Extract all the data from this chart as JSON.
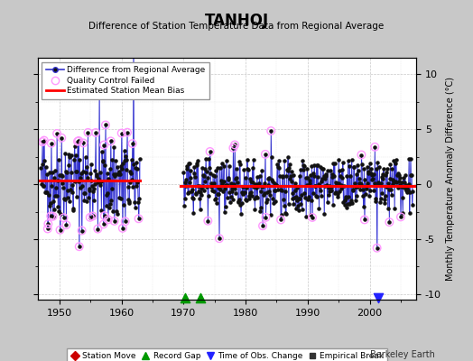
{
  "title": "TANHOJ",
  "subtitle": "Difference of Station Temperature Data from Regional Average",
  "ylabel": "Monthly Temperature Anomaly Difference (°C)",
  "ylim": [
    -10.5,
    11.5
  ],
  "xlim": [
    1946.5,
    2007.5
  ],
  "yticks": [
    -10,
    -5,
    0,
    5,
    10
  ],
  "xticks": [
    1950,
    1960,
    1970,
    1980,
    1990,
    2000
  ],
  "background_color": "#c8c8c8",
  "plot_bg_color": "#ffffff",
  "line_color": "#3333cc",
  "stem_color": "#8888ff",
  "bias_color": "#ff0000",
  "qc_color": "#ff99ff",
  "dot_color": "#111111",
  "gap_start": 1963.0,
  "gap_end": 1969.5,
  "bias1_y": 0.35,
  "bias2_y": -0.15,
  "bias1_xstart": 1946.5,
  "bias1_xend": 1963.0,
  "bias2_xstart": 1969.5,
  "bias2_xend": 2007.5,
  "record_gaps": [
    1970.3,
    1972.7
  ],
  "obs_changes": [
    2001.3
  ],
  "period1_start": 1947,
  "period1_end": 1963,
  "period2_start": 1970,
  "period2_end": 2007,
  "period1_amplitude": 2.3,
  "period2_amplitude": 1.4,
  "qc_threshold1": 3.2,
  "qc_threshold2": 2.8
}
